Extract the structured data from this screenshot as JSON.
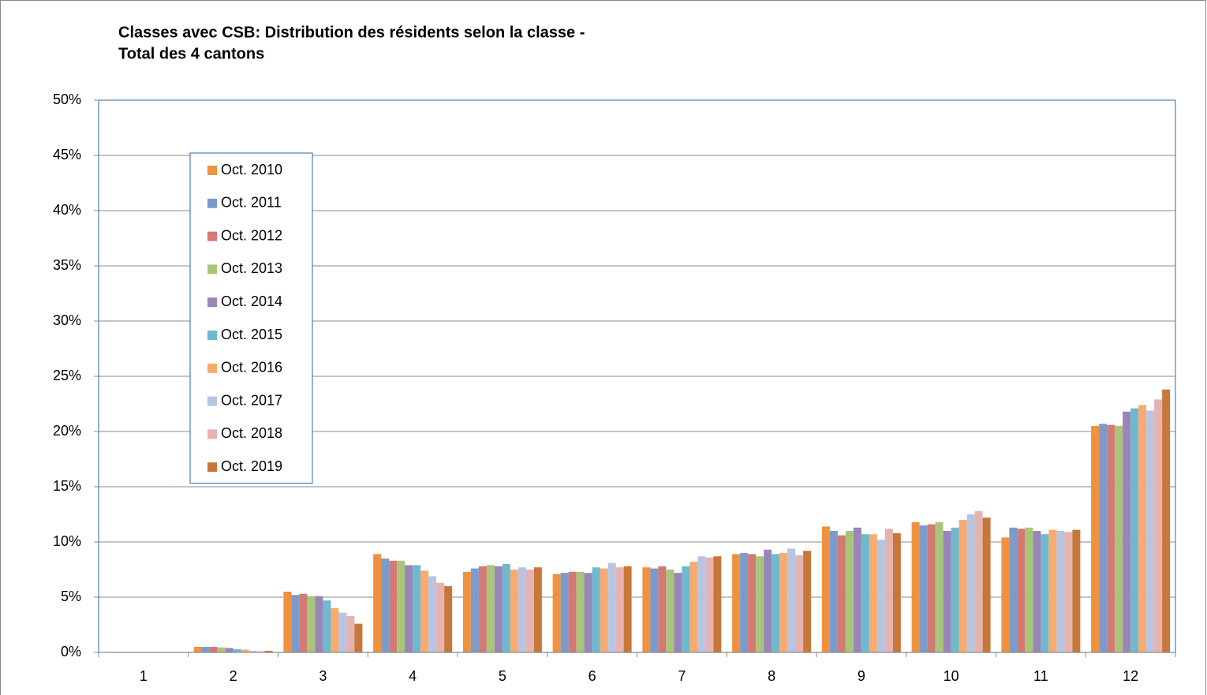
{
  "chart_data": {
    "type": "bar",
    "title": [
      "Classes avec CSB: Distribution des résidents selon la classe -",
      "Total des 4 cantons"
    ],
    "categories": [
      "1",
      "2",
      "3",
      "4",
      "5",
      "6",
      "7",
      "8",
      "9",
      "10",
      "11",
      "12"
    ],
    "series": [
      {
        "name": "Oct. 2010",
        "color": "#f0913f",
        "values": [
          0,
          0.5,
          5.5,
          8.9,
          7.3,
          7.1,
          7.7,
          8.9,
          11.4,
          11.8,
          10.4,
          20.5
        ]
      },
      {
        "name": "Oct. 2011",
        "color": "#7b9bcc",
        "values": [
          0,
          0.5,
          5.2,
          8.5,
          7.6,
          7.2,
          7.6,
          9.0,
          11.0,
          11.5,
          11.3,
          20.7
        ]
      },
      {
        "name": "Oct. 2012",
        "color": "#d27a74",
        "values": [
          0,
          0.5,
          5.3,
          8.3,
          7.8,
          7.3,
          7.8,
          8.9,
          10.6,
          11.6,
          11.2,
          20.6
        ]
      },
      {
        "name": "Oct. 2013",
        "color": "#a9c57a",
        "values": [
          0,
          0.45,
          5.1,
          8.3,
          7.9,
          7.3,
          7.5,
          8.7,
          11.0,
          11.8,
          11.3,
          20.5
        ]
      },
      {
        "name": "Oct. 2014",
        "color": "#9a85b8",
        "values": [
          0,
          0.4,
          5.1,
          7.9,
          7.8,
          7.2,
          7.2,
          9.3,
          11.3,
          11.0,
          11.0,
          21.8
        ]
      },
      {
        "name": "Oct. 2015",
        "color": "#6fb9cf",
        "values": [
          0,
          0.3,
          4.7,
          7.9,
          8.0,
          7.7,
          7.8,
          8.9,
          10.7,
          11.3,
          10.7,
          22.1
        ]
      },
      {
        "name": "Oct. 2016",
        "color": "#f7ab6e",
        "values": [
          0,
          0.25,
          4.0,
          7.4,
          7.5,
          7.6,
          8.2,
          9.0,
          10.7,
          12.0,
          11.1,
          22.4
        ]
      },
      {
        "name": "Oct. 2017",
        "color": "#b7c5e3",
        "values": [
          0,
          0.15,
          3.6,
          6.9,
          7.7,
          8.1,
          8.7,
          9.4,
          10.2,
          12.5,
          11.0,
          21.9
        ]
      },
      {
        "name": "Oct. 2018",
        "color": "#e5b3b0",
        "values": [
          0,
          0.1,
          3.3,
          6.3,
          7.5,
          7.7,
          8.6,
          8.8,
          11.2,
          12.8,
          10.9,
          22.9
        ]
      },
      {
        "name": "Oct. 2019",
        "color": "#c8773a",
        "values": [
          0,
          0.15,
          2.6,
          6.0,
          7.7,
          7.8,
          8.7,
          9.2,
          10.8,
          12.2,
          11.1,
          23.8
        ]
      }
    ],
    "ylim": [
      0,
      50
    ],
    "yticks": [
      {
        "value": 0,
        "label": "0%"
      },
      {
        "value": 5,
        "label": "5%"
      },
      {
        "value": 10,
        "label": "10%"
      },
      {
        "value": 15,
        "label": "15%"
      },
      {
        "value": 20,
        "label": "20%"
      },
      {
        "value": 25,
        "label": "25%"
      },
      {
        "value": 30,
        "label": "30%"
      },
      {
        "value": 35,
        "label": "35%"
      },
      {
        "value": 40,
        "label": "40%"
      },
      {
        "value": 45,
        "label": "45%"
      },
      {
        "value": 50,
        "label": "50%"
      }
    ],
    "grid": true
  }
}
